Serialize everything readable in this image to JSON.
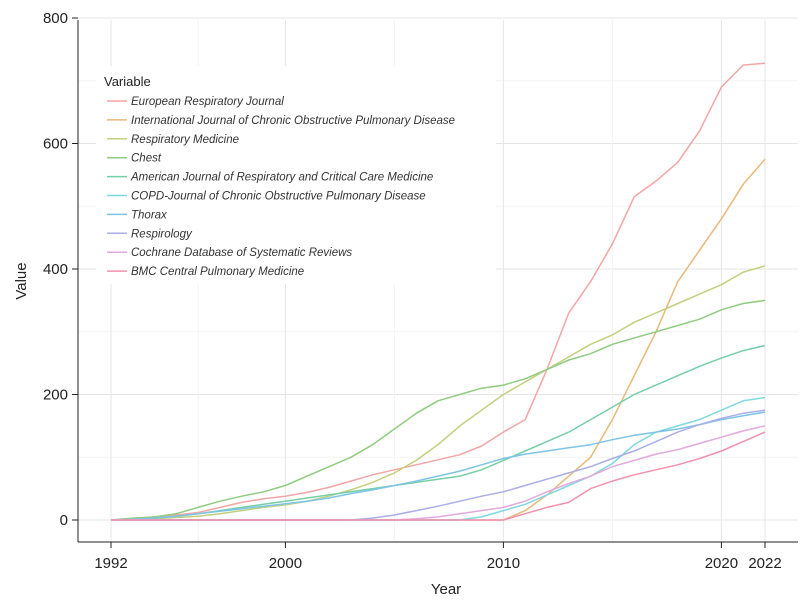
{
  "chart_data": {
    "type": "line",
    "xlabel": "Year",
    "ylabel": "Value",
    "xlim": [
      1992,
      2022
    ],
    "ylim": [
      0,
      800
    ],
    "xticks": [
      1992,
      2000,
      2010,
      2020,
      2022
    ],
    "yticks": [
      0,
      200,
      400,
      600,
      800
    ],
    "grid": true,
    "legend_title": "Variable",
    "legend_position": "top-left",
    "x": [
      1992,
      1993,
      1994,
      1995,
      1996,
      1997,
      1998,
      1999,
      2000,
      2001,
      2002,
      2003,
      2004,
      2005,
      2006,
      2007,
      2008,
      2009,
      2010,
      2011,
      2012,
      2013,
      2014,
      2015,
      2016,
      2017,
      2018,
      2019,
      2020,
      2021,
      2022
    ],
    "series": [
      {
        "name": "European Respiratory Journal",
        "color": "#f4a5a5",
        "values": [
          0,
          2,
          5,
          8,
          12,
          20,
          28,
          34,
          38,
          44,
          52,
          62,
          72,
          80,
          88,
          96,
          104,
          118,
          140,
          160,
          240,
          330,
          380,
          440,
          515,
          540,
          570,
          620,
          690,
          725,
          728
        ]
      },
      {
        "name": "International Journal of Chronic Obstructive Pulmonary Disease",
        "color": "#e9b87a",
        "values": [
          0,
          0,
          0,
          0,
          0,
          0,
          0,
          0,
          0,
          0,
          0,
          0,
          0,
          0,
          0,
          0,
          0,
          0,
          0,
          15,
          40,
          70,
          100,
          160,
          230,
          300,
          380,
          430,
          480,
          535,
          575
        ]
      },
      {
        "name": "Respiratory Medicine",
        "color": "#c4cf7e",
        "values": [
          0,
          1,
          2,
          4,
          6,
          10,
          15,
          20,
          24,
          30,
          38,
          48,
          60,
          75,
          95,
          120,
          150,
          175,
          200,
          220,
          240,
          260,
          280,
          295,
          315,
          330,
          345,
          360,
          375,
          395,
          405
        ]
      },
      {
        "name": "Chest",
        "color": "#8fcc80",
        "values": [
          0,
          3,
          5,
          10,
          20,
          30,
          38,
          45,
          55,
          70,
          85,
          100,
          120,
          145,
          170,
          190,
          200,
          210,
          215,
          225,
          240,
          255,
          265,
          280,
          290,
          300,
          310,
          320,
          335,
          345,
          350
        ]
      },
      {
        "name": "American Journal of Respiratory and Critical Care Medicine",
        "color": "#76cfa6",
        "values": [
          0,
          1,
          3,
          6,
          10,
          15,
          20,
          25,
          30,
          35,
          40,
          45,
          50,
          55,
          60,
          65,
          70,
          80,
          95,
          110,
          125,
          140,
          160,
          180,
          200,
          215,
          230,
          245,
          258,
          270,
          278
        ]
      },
      {
        "name": "COPD-Journal of Chronic Obstructive Pulmonary Disease",
        "color": "#7fd8dd",
        "values": [
          0,
          0,
          0,
          0,
          0,
          0,
          0,
          0,
          0,
          0,
          0,
          0,
          0,
          0,
          0,
          0,
          0,
          5,
          15,
          25,
          40,
          55,
          70,
          90,
          120,
          140,
          150,
          160,
          175,
          190,
          195
        ]
      },
      {
        "name": "Thorax",
        "color": "#7ec4e6",
        "values": [
          0,
          1,
          3,
          6,
          10,
          14,
          18,
          22,
          26,
          30,
          35,
          42,
          48,
          55,
          62,
          70,
          78,
          88,
          98,
          105,
          110,
          115,
          120,
          128,
          135,
          140,
          145,
          152,
          160,
          166,
          172
        ]
      },
      {
        "name": "Respirology",
        "color": "#a9aee6",
        "values": [
          0,
          0,
          0,
          0,
          0,
          0,
          0,
          0,
          0,
          0,
          0,
          0,
          3,
          8,
          15,
          22,
          30,
          38,
          45,
          55,
          65,
          75,
          85,
          98,
          110,
          125,
          140,
          152,
          162,
          170,
          175
        ]
      },
      {
        "name": "Cochrane Database of Systematic Reviews",
        "color": "#e2a9dd",
        "values": [
          0,
          0,
          0,
          0,
          0,
          0,
          0,
          0,
          0,
          0,
          0,
          0,
          0,
          0,
          2,
          5,
          10,
          15,
          20,
          30,
          45,
          58,
          70,
          85,
          95,
          105,
          112,
          122,
          132,
          142,
          150
        ]
      },
      {
        "name": "BMC Central Pulmonary Medicine",
        "color": "#f191ad",
        "values": [
          0,
          0,
          0,
          0,
          0,
          0,
          0,
          0,
          0,
          0,
          0,
          0,
          0,
          0,
          0,
          0,
          0,
          0,
          0,
          10,
          20,
          28,
          50,
          62,
          72,
          80,
          88,
          98,
          110,
          125,
          140
        ]
      }
    ]
  }
}
